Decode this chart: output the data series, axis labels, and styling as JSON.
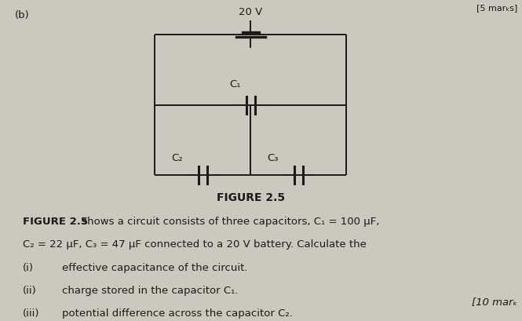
{
  "bg_color": "#ccc8be",
  "text_color": "#1a1a1a",
  "figure_label": "(b)",
  "voltage_label": "20 V",
  "figure_caption": "FIGURE 2.5",
  "c1_label": "C₁",
  "c2_label": "C₂",
  "c3_label": "C₃",
  "top_right_label": "[5 marₖs]",
  "marks_label": "[10 marₖ",
  "body_bold": "FIGURE 2.5",
  "body_rest1": " shows a circuit consists of three capacitors, C₁ = 100 μF,",
  "body_line2": "C₂ = 22 μF, C₃ = 47 μF connected to a 20 V battery. Calculate the",
  "item_i_num": "(i)",
  "item_i_text": "effective capacitance of the circuit.",
  "item_ii_num": "(ii)",
  "item_ii_text": "charge stored in the capacitor C₁.",
  "item_iii_num": "(iii)",
  "item_iii_text": "potential difference across the capacitor C₂."
}
